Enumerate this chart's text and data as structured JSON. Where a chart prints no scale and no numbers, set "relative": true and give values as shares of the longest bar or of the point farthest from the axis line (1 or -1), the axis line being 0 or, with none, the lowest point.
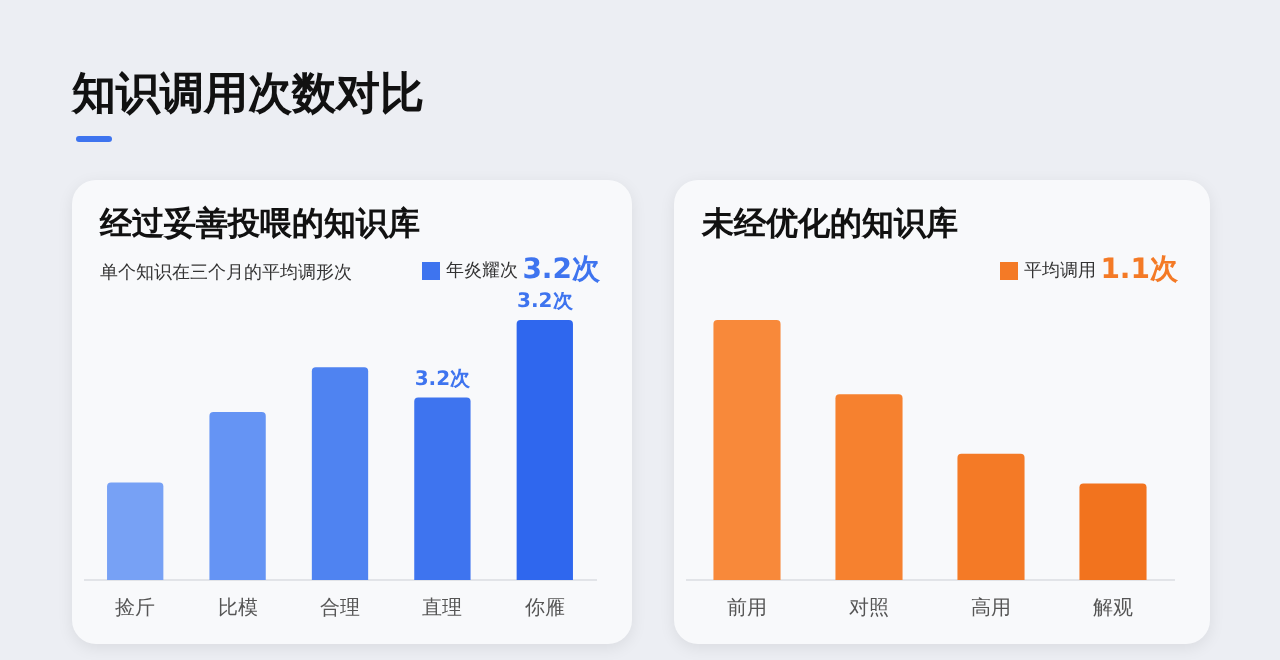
{
  "chart_data": [
    {
      "type": "other",
      "title": "知识调用次数对比"
    },
    {
      "type": "bar",
      "title": "经过妥善投喂的知识库",
      "subtitle": "单个知识在三个月的平均调形次",
      "categories": [
        "捡斤",
        "比模",
        "合理",
        "直理",
        "你雁"
      ],
      "series": [
        {
          "name": "年炎耀次",
          "color": "#3e74ef",
          "colors": [
            "#77a1f5",
            "#6594f4",
            "#4f83f1",
            "#3e74ef",
            "#2f67ee"
          ],
          "values": [
            0.375,
            0.646,
            0.818,
            0.702,
            1
          ]
        }
      ],
      "annotations": [
        "3.2次",
        "3.2次",
        "3.2次"
      ],
      "relative": true,
      "legend": "top right"
    },
    {
      "type": "bar",
      "title": "未经优化的知识库",
      "categories": [
        "前用",
        "对照",
        "高用",
        "解观"
      ],
      "series": [
        {
          "name": "平均调用",
          "color": "#f47a26",
          "colors": [
            "#f8893a",
            "#f6812f",
            "#f47a26",
            "#f2731e"
          ],
          "values": [
            1,
            0.714,
            0.486,
            0.371
          ]
        }
      ],
      "annotations": [
        "1.1次"
      ],
      "relative": true,
      "legend": "top right"
    }
  ]
}
